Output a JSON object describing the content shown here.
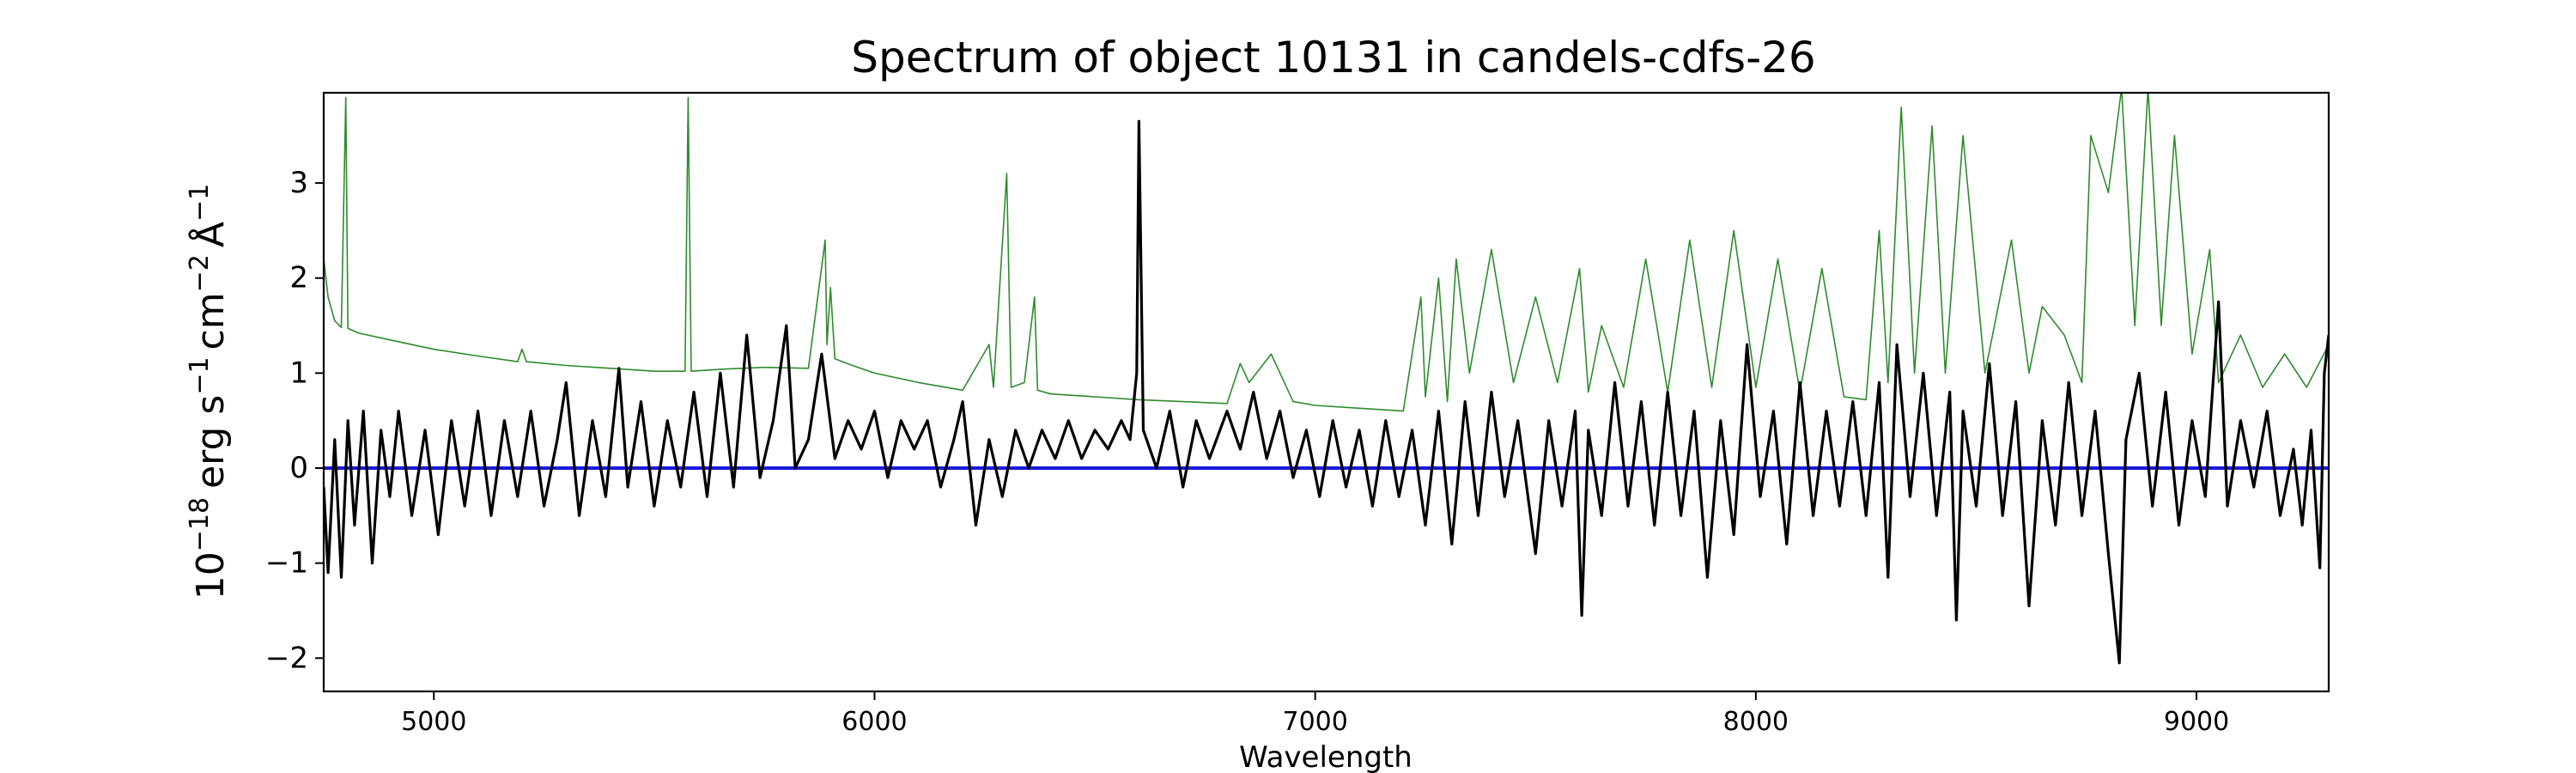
{
  "chart_data": {
    "type": "line",
    "title": "Spectrum of object 10131 in candels-cdfs-26",
    "xlabel": "Wavelength",
    "ylabel": {
      "base": "10",
      "exp": "−18",
      "unit_erg": "erg s",
      "exp_s": "−1",
      "unit_cm": "cm",
      "exp_cm": "−2",
      "unit_a": "Å",
      "exp_a": "−1"
    },
    "xlim": [
      4750,
      9300
    ],
    "ylim": [
      -2.35,
      3.95
    ],
    "xticks": [
      5000,
      6000,
      7000,
      8000,
      9000
    ],
    "xtick_labels": [
      "5000",
      "6000",
      "7000",
      "8000",
      "9000"
    ],
    "yticks": [
      -2,
      -1,
      0,
      1,
      2,
      3
    ],
    "ytick_labels": [
      "−2",
      "−1",
      "0",
      "1",
      "2",
      "3"
    ],
    "grid": false,
    "series": [
      {
        "role": "noise",
        "color": "#2e8b2e",
        "points": [
          [
            4750,
            2.2
          ],
          [
            4760,
            1.8
          ],
          [
            4775,
            1.55
          ],
          [
            4790,
            1.48
          ],
          [
            4800,
            3.9
          ],
          [
            4805,
            1.47
          ],
          [
            4830,
            1.42
          ],
          [
            4900,
            1.35
          ],
          [
            5000,
            1.25
          ],
          [
            5100,
            1.18
          ],
          [
            5190,
            1.12
          ],
          [
            5200,
            1.25
          ],
          [
            5210,
            1.12
          ],
          [
            5300,
            1.08
          ],
          [
            5400,
            1.05
          ],
          [
            5500,
            1.02
          ],
          [
            5570,
            1.02
          ],
          [
            5577,
            3.9
          ],
          [
            5584,
            1.02
          ],
          [
            5650,
            1.04
          ],
          [
            5750,
            1.06
          ],
          [
            5850,
            1.05
          ],
          [
            5888,
            2.4
          ],
          [
            5892,
            1.3
          ],
          [
            5900,
            1.9
          ],
          [
            5910,
            1.15
          ],
          [
            5950,
            1.08
          ],
          [
            6000,
            1.0
          ],
          [
            6100,
            0.9
          ],
          [
            6200,
            0.82
          ],
          [
            6260,
            1.3
          ],
          [
            6270,
            0.85
          ],
          [
            6300,
            3.1
          ],
          [
            6310,
            0.85
          ],
          [
            6340,
            0.9
          ],
          [
            6363,
            1.8
          ],
          [
            6370,
            0.82
          ],
          [
            6400,
            0.78
          ],
          [
            6500,
            0.75
          ],
          [
            6600,
            0.72
          ],
          [
            6700,
            0.7
          ],
          [
            6800,
            0.68
          ],
          [
            6830,
            1.1
          ],
          [
            6850,
            0.9
          ],
          [
            6900,
            1.2
          ],
          [
            6950,
            0.7
          ],
          [
            7000,
            0.66
          ],
          [
            7100,
            0.63
          ],
          [
            7200,
            0.6
          ],
          [
            7240,
            1.8
          ],
          [
            7250,
            0.75
          ],
          [
            7280,
            2.0
          ],
          [
            7300,
            0.7
          ],
          [
            7320,
            2.2
          ],
          [
            7350,
            1.0
          ],
          [
            7400,
            2.3
          ],
          [
            7450,
            0.9
          ],
          [
            7500,
            1.8
          ],
          [
            7550,
            0.9
          ],
          [
            7600,
            2.1
          ],
          [
            7620,
            0.8
          ],
          [
            7650,
            1.5
          ],
          [
            7700,
            0.85
          ],
          [
            7750,
            2.2
          ],
          [
            7800,
            0.8
          ],
          [
            7850,
            2.4
          ],
          [
            7900,
            0.85
          ],
          [
            7950,
            2.5
          ],
          [
            8000,
            0.85
          ],
          [
            8050,
            2.2
          ],
          [
            8100,
            0.8
          ],
          [
            8150,
            2.1
          ],
          [
            8200,
            0.75
          ],
          [
            8250,
            0.72
          ],
          [
            8280,
            2.5
          ],
          [
            8300,
            0.9
          ],
          [
            8330,
            3.8
          ],
          [
            8360,
            1.0
          ],
          [
            8400,
            3.6
          ],
          [
            8430,
            1.0
          ],
          [
            8470,
            3.5
          ],
          [
            8520,
            1.0
          ],
          [
            8580,
            2.4
          ],
          [
            8620,
            1.0
          ],
          [
            8650,
            1.7
          ],
          [
            8700,
            1.4
          ],
          [
            8740,
            0.9
          ],
          [
            8760,
            3.5
          ],
          [
            8800,
            2.9
          ],
          [
            8830,
            4.0
          ],
          [
            8860,
            1.5
          ],
          [
            8890,
            4.0
          ],
          [
            8920,
            1.5
          ],
          [
            8950,
            3.5
          ],
          [
            8990,
            1.2
          ],
          [
            9030,
            2.3
          ],
          [
            9050,
            0.9
          ],
          [
            9100,
            1.4
          ],
          [
            9150,
            0.85
          ],
          [
            9200,
            1.2
          ],
          [
            9250,
            0.85
          ],
          [
            9300,
            1.3
          ]
        ]
      },
      {
        "role": "zero",
        "color": "#1a1adb",
        "points": [
          [
            4750,
            0.0
          ],
          [
            9300,
            0.0
          ]
        ]
      },
      {
        "role": "flux",
        "color": "#000000",
        "points": [
          [
            4750,
            -0.2
          ],
          [
            4760,
            -1.1
          ],
          [
            4775,
            0.3
          ],
          [
            4790,
            -1.15
          ],
          [
            4805,
            0.5
          ],
          [
            4820,
            -0.6
          ],
          [
            4840,
            0.6
          ],
          [
            4860,
            -1.0
          ],
          [
            4880,
            0.4
          ],
          [
            4900,
            -0.3
          ],
          [
            4920,
            0.6
          ],
          [
            4950,
            -0.5
          ],
          [
            4980,
            0.4
          ],
          [
            5010,
            -0.7
          ],
          [
            5040,
            0.5
          ],
          [
            5070,
            -0.4
          ],
          [
            5100,
            0.6
          ],
          [
            5130,
            -0.5
          ],
          [
            5160,
            0.5
          ],
          [
            5190,
            -0.3
          ],
          [
            5220,
            0.6
          ],
          [
            5250,
            -0.4
          ],
          [
            5280,
            0.3
          ],
          [
            5300,
            0.9
          ],
          [
            5330,
            -0.5
          ],
          [
            5360,
            0.5
          ],
          [
            5390,
            -0.3
          ],
          [
            5420,
            1.05
          ],
          [
            5440,
            -0.2
          ],
          [
            5470,
            0.7
          ],
          [
            5500,
            -0.4
          ],
          [
            5530,
            0.5
          ],
          [
            5560,
            -0.2
          ],
          [
            5590,
            0.8
          ],
          [
            5620,
            -0.3
          ],
          [
            5650,
            1.0
          ],
          [
            5680,
            -0.2
          ],
          [
            5710,
            1.4
          ],
          [
            5740,
            -0.1
          ],
          [
            5770,
            0.5
          ],
          [
            5800,
            1.5
          ],
          [
            5820,
            0.0
          ],
          [
            5850,
            0.3
          ],
          [
            5880,
            1.2
          ],
          [
            5910,
            0.1
          ],
          [
            5940,
            0.5
          ],
          [
            5970,
            0.2
          ],
          [
            6000,
            0.6
          ],
          [
            6030,
            -0.1
          ],
          [
            6060,
            0.5
          ],
          [
            6090,
            0.2
          ],
          [
            6120,
            0.5
          ],
          [
            6150,
            -0.2
          ],
          [
            6180,
            0.3
          ],
          [
            6200,
            0.7
          ],
          [
            6230,
            -0.6
          ],
          [
            6260,
            0.3
          ],
          [
            6290,
            -0.3
          ],
          [
            6320,
            0.4
          ],
          [
            6350,
            0.0
          ],
          [
            6380,
            0.4
          ],
          [
            6410,
            0.1
          ],
          [
            6440,
            0.5
          ],
          [
            6470,
            0.1
          ],
          [
            6500,
            0.4
          ],
          [
            6530,
            0.2
          ],
          [
            6560,
            0.5
          ],
          [
            6580,
            0.3
          ],
          [
            6595,
            1.0
          ],
          [
            6600,
            3.65
          ],
          [
            6605,
            2.0
          ],
          [
            6610,
            0.4
          ],
          [
            6640,
            0.0
          ],
          [
            6670,
            0.6
          ],
          [
            6700,
            -0.2
          ],
          [
            6730,
            0.5
          ],
          [
            6760,
            0.1
          ],
          [
            6800,
            0.6
          ],
          [
            6830,
            0.2
          ],
          [
            6860,
            0.8
          ],
          [
            6890,
            0.1
          ],
          [
            6920,
            0.6
          ],
          [
            6950,
            -0.1
          ],
          [
            6980,
            0.4
          ],
          [
            7010,
            -0.3
          ],
          [
            7040,
            0.5
          ],
          [
            7070,
            -0.2
          ],
          [
            7100,
            0.4
          ],
          [
            7130,
            -0.4
          ],
          [
            7160,
            0.5
          ],
          [
            7190,
            -0.3
          ],
          [
            7220,
            0.4
          ],
          [
            7250,
            -0.6
          ],
          [
            7280,
            0.6
          ],
          [
            7310,
            -0.8
          ],
          [
            7340,
            0.7
          ],
          [
            7370,
            -0.5
          ],
          [
            7400,
            0.8
          ],
          [
            7430,
            -0.3
          ],
          [
            7460,
            0.5
          ],
          [
            7500,
            -0.9
          ],
          [
            7530,
            0.5
          ],
          [
            7560,
            -0.4
          ],
          [
            7590,
            0.6
          ],
          [
            7605,
            -1.55
          ],
          [
            7620,
            0.4
          ],
          [
            7650,
            -0.5
          ],
          [
            7680,
            0.9
          ],
          [
            7710,
            -0.4
          ],
          [
            7740,
            0.7
          ],
          [
            7770,
            -0.6
          ],
          [
            7800,
            0.8
          ],
          [
            7830,
            -0.5
          ],
          [
            7860,
            0.6
          ],
          [
            7890,
            -1.15
          ],
          [
            7920,
            0.5
          ],
          [
            7950,
            -0.7
          ],
          [
            7980,
            1.3
          ],
          [
            8010,
            -0.3
          ],
          [
            8040,
            0.6
          ],
          [
            8070,
            -0.8
          ],
          [
            8100,
            0.9
          ],
          [
            8130,
            -0.5
          ],
          [
            8160,
            0.6
          ],
          [
            8190,
            -0.4
          ],
          [
            8220,
            0.7
          ],
          [
            8250,
            -0.5
          ],
          [
            8280,
            0.9
          ],
          [
            8300,
            -1.15
          ],
          [
            8320,
            1.3
          ],
          [
            8350,
            -0.3
          ],
          [
            8380,
            1.0
          ],
          [
            8410,
            -0.5
          ],
          [
            8440,
            0.8
          ],
          [
            8455,
            -1.6
          ],
          [
            8470,
            0.6
          ],
          [
            8500,
            -0.4
          ],
          [
            8530,
            1.1
          ],
          [
            8560,
            -0.5
          ],
          [
            8590,
            0.7
          ],
          [
            8620,
            -1.45
          ],
          [
            8650,
            0.5
          ],
          [
            8680,
            -0.6
          ],
          [
            8710,
            0.9
          ],
          [
            8740,
            -0.5
          ],
          [
            8770,
            0.6
          ],
          [
            8800,
            -0.9
          ],
          [
            8825,
            -2.05
          ],
          [
            8840,
            0.3
          ],
          [
            8870,
            1.0
          ],
          [
            8900,
            -0.4
          ],
          [
            8930,
            0.8
          ],
          [
            8960,
            -0.6
          ],
          [
            8990,
            0.5
          ],
          [
            9020,
            -0.3
          ],
          [
            9050,
            1.75
          ],
          [
            9070,
            -0.4
          ],
          [
            9100,
            0.5
          ],
          [
            9130,
            -0.2
          ],
          [
            9160,
            0.6
          ],
          [
            9190,
            -0.5
          ],
          [
            9220,
            0.2
          ],
          [
            9240,
            -0.6
          ],
          [
            9260,
            0.4
          ],
          [
            9280,
            -1.05
          ],
          [
            9290,
            1.0
          ],
          [
            9300,
            1.4
          ]
        ]
      }
    ]
  }
}
